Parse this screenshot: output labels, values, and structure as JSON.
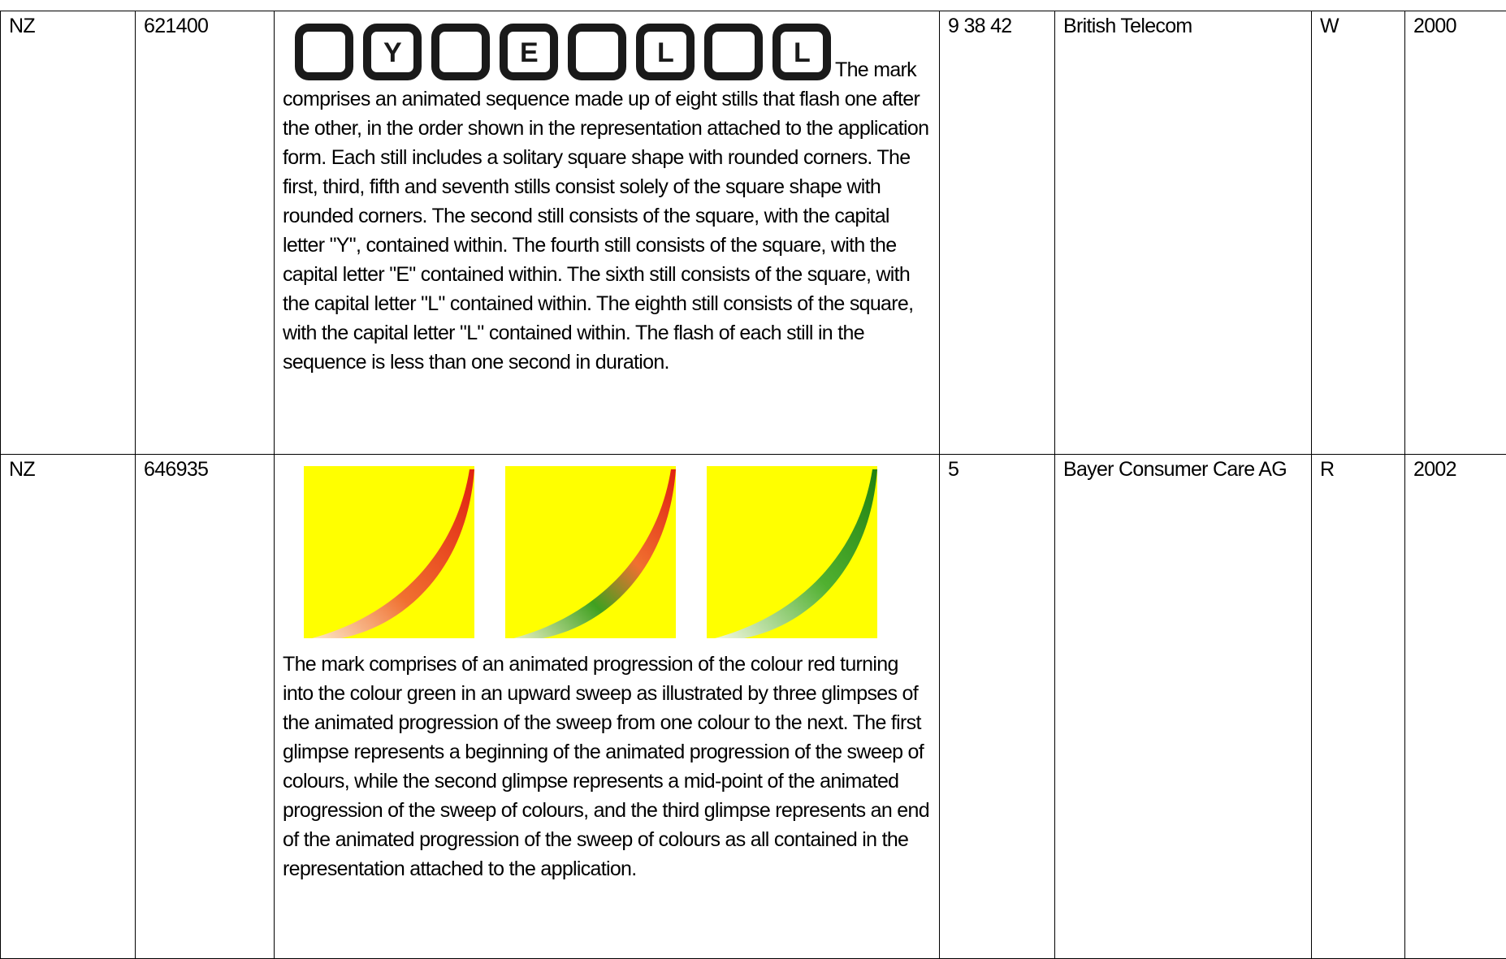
{
  "table": {
    "rows": [
      {
        "country": "NZ",
        "number": "621400",
        "logo_letters": [
          "Y",
          "E",
          "L",
          "L"
        ],
        "description": "The mark comprises an animated sequence made up of eight stills that flash one after the other, in the order shown in the representation attached to the application form. Each still includes a solitary square shape with rounded corners. The first, third, fifth and seventh stills consist solely of the square shape with rounded corners. The second still consists of the square, with the capital letter \"Y\", contained within. The fourth still consists of the square, with the capital letter \"E\" contained within. The sixth still consists of the square, with the capital letter \"L\" contained within. The eighth still consists of the square, with the capital letter \"L\" contained within. The flash of each still in the sequence is less than one second in duration.",
        "classes": "9 38 42",
        "owner": "British Telecom",
        "status": "W",
        "year": "2000"
      },
      {
        "country": "NZ",
        "number": "646935",
        "description": "The mark comprises of an animated progression of the colour red turning into the colour green in an upward sweep as illustrated by three glimpses of the animated progression of the sweep from one colour to the next. The first glimpse represents a beginning of the animated progression of the sweep of colours, while the second glimpse represents a mid-point of the animated progression of the sweep of colours, and the third glimpse represents an end of the animated progression of the sweep of colours as all contained in the representation attached to the application.",
        "classes": "5",
        "owner": "Bayer Consumer Care AG",
        "status": "R",
        "year": "2002"
      }
    ]
  }
}
